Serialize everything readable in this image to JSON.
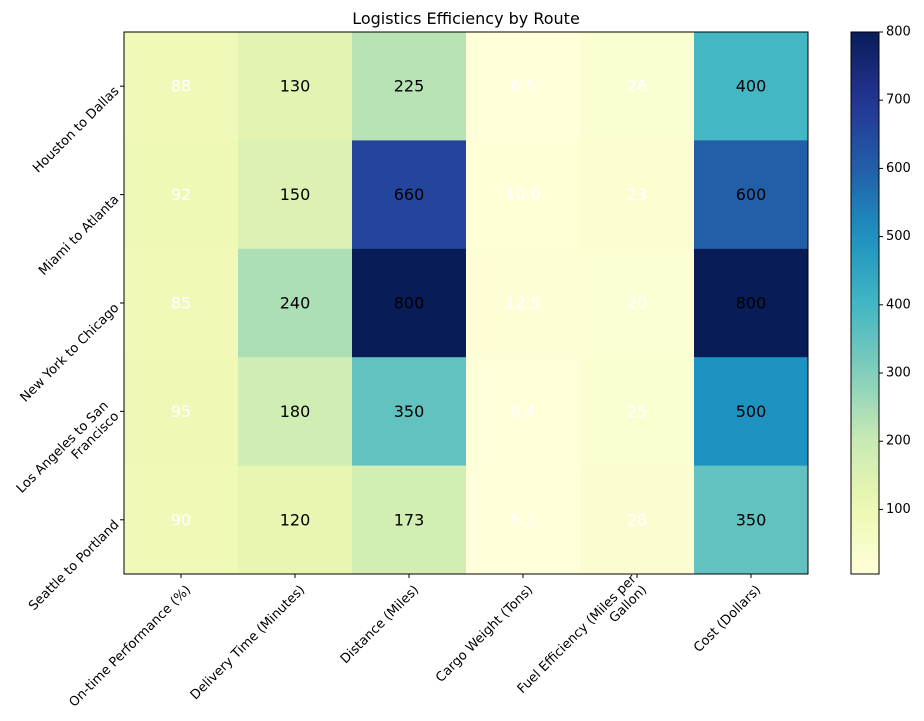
{
  "chart_data": {
    "type": "heatmap",
    "title": "Logistics Efficiency by Route",
    "columns": [
      "On-time Performance (%)",
      "Delivery Time (Minutes)",
      "Distance (Miles)",
      "Cargo Weight (Tons)",
      "Fuel Efficiency (Miles per Gallon)",
      "Cost (Dollars)"
    ],
    "column_label_lines": [
      [
        "On-time Performance (%)"
      ],
      [
        "Delivery Time (Minutes)"
      ],
      [
        "Distance (Miles)"
      ],
      [
        "Cargo Weight (Tons)"
      ],
      [
        "Fuel Efficiency (Miles per",
        "Gallon)"
      ],
      [
        "Cost (Dollars)"
      ]
    ],
    "rows": [
      "Houston to Dallas",
      "Miami to Atlanta",
      "New York to Chicago",
      "Los Angeles to San Francisco",
      "Seattle to Portland"
    ],
    "row_label_lines": [
      [
        "Houston to Dallas"
      ],
      [
        "Miami to Atlanta"
      ],
      [
        "New York to Chicago"
      ],
      [
        "Los Angeles to San",
        "Francisco"
      ],
      [
        "Seattle to Portland"
      ]
    ],
    "values": [
      [
        88,
        130,
        225,
        6.5,
        26,
        400
      ],
      [
        92,
        150,
        660,
        10.0,
        23,
        600
      ],
      [
        85,
        240,
        800,
        12.5,
        20,
        800
      ],
      [
        95,
        180,
        350,
        8.4,
        25,
        500
      ],
      [
        90,
        120,
        173,
        5.3,
        28,
        350
      ]
    ],
    "value_labels": [
      [
        "88",
        "130",
        "225",
        "6.5",
        "26",
        "400"
      ],
      [
        "92",
        "150",
        "660",
        "10.0",
        "23",
        "600"
      ],
      [
        "85",
        "240",
        "800",
        "12.5",
        "20",
        "800"
      ],
      [
        "95",
        "180",
        "350",
        "8.4",
        "25",
        "500"
      ],
      [
        "90",
        "120",
        "173",
        "5.3",
        "28",
        "350"
      ]
    ],
    "colormap": "YlGnBu",
    "vmin": 5.3,
    "vmax": 800,
    "colorbar_ticks": [
      "100",
      "200",
      "300",
      "400",
      "500",
      "600",
      "700",
      "800"
    ],
    "colorbar_tick_values": [
      100,
      200,
      300,
      400,
      500,
      600,
      700,
      800
    ],
    "grid": false
  }
}
